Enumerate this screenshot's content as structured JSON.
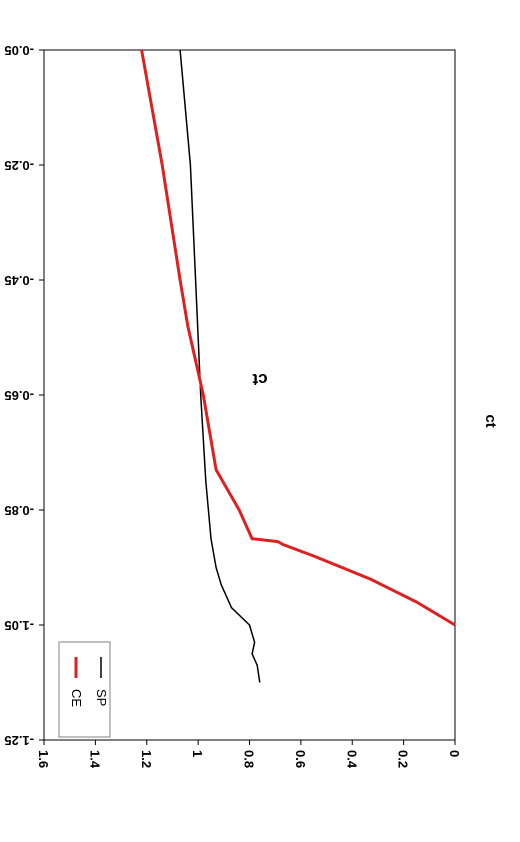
{
  "chart_data": {
    "type": "line",
    "title": "ct",
    "xlabel": "",
    "ylabel": "ct",
    "orientation": "rotated 180 degrees",
    "xlim": [
      -1.25,
      -0.05
    ],
    "ylim": [
      0,
      1.6
    ],
    "x_ticks": [
      "-1.25",
      "-1.05",
      "-0.85",
      "-0.65",
      "-0.45",
      "-0.25",
      "-0.05"
    ],
    "y_ticks": [
      "0",
      "0.2",
      "0.4",
      "0.6",
      "0.8",
      "1",
      "1.2",
      "1.4",
      "1.6"
    ],
    "grid": false,
    "legend": {
      "placement": "bottom-left",
      "entries": [
        "SP",
        "CE"
      ]
    },
    "series": [
      {
        "name": "SP",
        "color": "#000000",
        "x": [
          -1.15,
          -1.12,
          -1.1,
          -1.08,
          -1.05,
          -1.02,
          -0.98,
          -0.95,
          -0.9,
          -0.8,
          -0.65,
          -0.45,
          -0.25,
          -0.05
        ],
        "y": [
          0.76,
          0.77,
          0.79,
          0.78,
          0.8,
          0.87,
          0.91,
          0.93,
          0.95,
          0.97,
          0.99,
          1.01,
          1.03,
          1.07
        ]
      },
      {
        "name": "CE",
        "color": "#e02020",
        "x": [
          -1.05,
          -1.01,
          -0.97,
          -0.93,
          -0.91,
          -0.905,
          -0.9,
          -0.85,
          -0.78,
          -0.65,
          -0.53,
          -0.45,
          -0.25,
          -0.05
        ],
        "y": [
          0.0,
          0.15,
          0.33,
          0.55,
          0.67,
          0.69,
          0.79,
          0.84,
          0.93,
          0.98,
          1.04,
          1.07,
          1.14,
          1.22
        ]
      }
    ]
  }
}
